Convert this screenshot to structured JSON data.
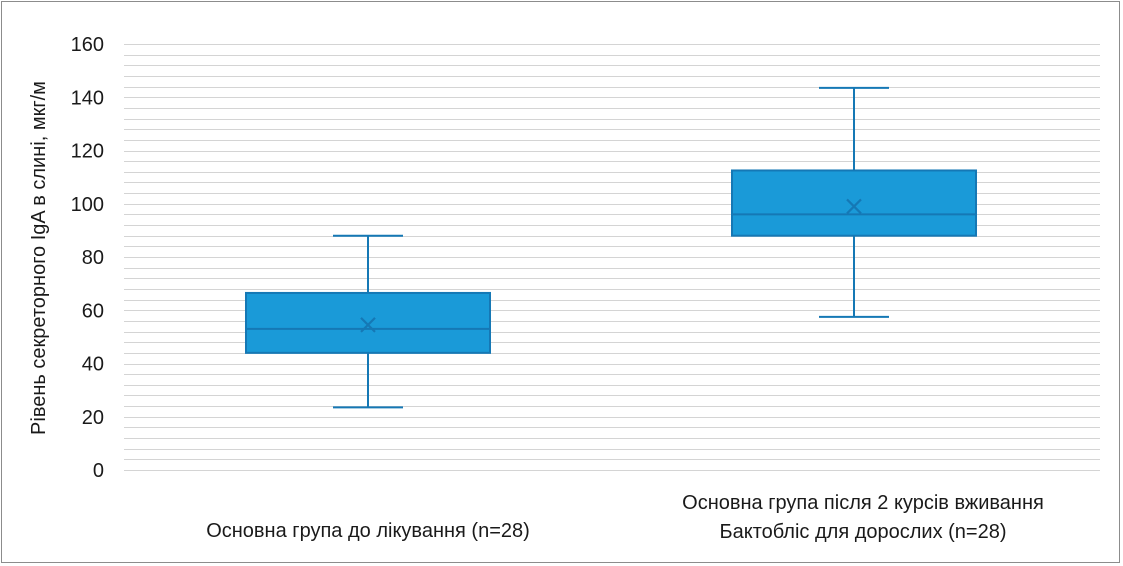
{
  "chart_data": {
    "type": "box",
    "title": "",
    "xlabel": "",
    "ylabel": "Рівень секреторного IgA в слині, мкг/м",
    "ylim": [
      0,
      160
    ],
    "yticks": [
      0,
      20,
      40,
      60,
      80,
      100,
      120,
      140,
      160
    ],
    "minor_step": 4,
    "grid": true,
    "colors": {
      "box_fill": "#1a9ad8",
      "box_stroke": "#1578b5",
      "grid": "#d4d4d4",
      "text": "#1a1a1a"
    },
    "categories": [
      {
        "lines": [
          "Основна група до лікування (n=28)"
        ]
      },
      {
        "lines": [
          "Основна група після 2 курсів вживання",
          "Бактобліс для дорослих (n=28)"
        ]
      }
    ],
    "boxes": [
      {
        "min": 23.5,
        "q1": 44,
        "median": 53,
        "q3": 66.5,
        "max": 88,
        "mean": 54.5
      },
      {
        "min": 57.5,
        "q1": 88,
        "median": 96,
        "q3": 112.5,
        "max": 143.5,
        "mean": 99
      }
    ]
  }
}
